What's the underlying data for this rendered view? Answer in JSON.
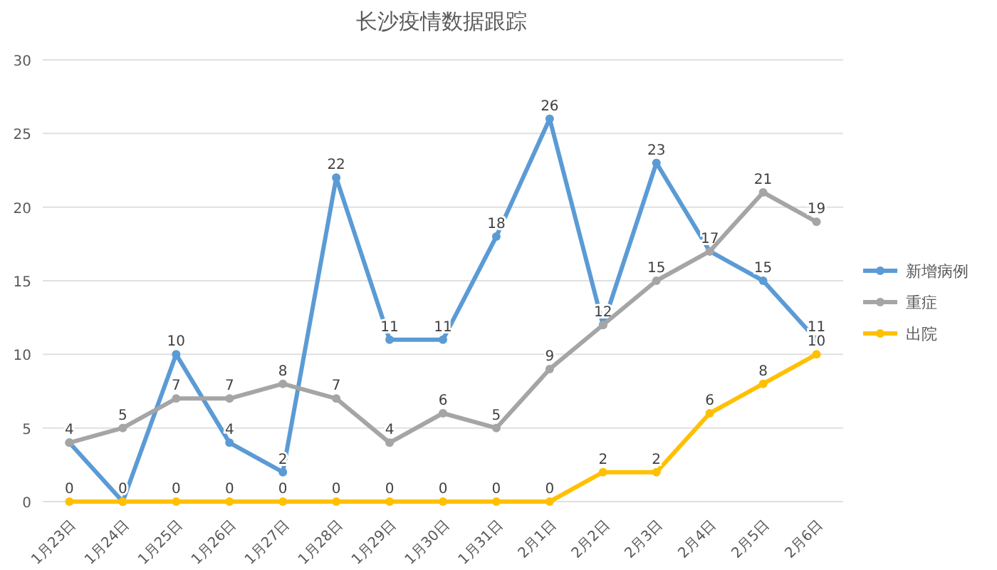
{
  "chart_data": {
    "type": "line",
    "title": "长沙疫情数据跟踪",
    "categories": [
      "1月23日",
      "1月24日",
      "1月25日",
      "1月26日",
      "1月27日",
      "1月28日",
      "1月29日",
      "1月30日",
      "1月31日",
      "2月1日",
      "2月2日",
      "2月3日",
      "2月4日",
      "2月5日",
      "2月6日"
    ],
    "series": [
      {
        "name": "新增病例",
        "color": "#5b9bd5",
        "values": [
          4,
          0,
          10,
          4,
          2,
          22,
          11,
          11,
          18,
          26,
          12,
          23,
          17,
          15,
          11
        ],
        "value_labels": [
          "4",
          "0",
          "10",
          "4",
          "2",
          "22",
          "11",
          "11",
          "18",
          "26",
          "12",
          "23",
          "17",
          "15",
          "11"
        ]
      },
      {
        "name": "重症",
        "color": "#a5a5a5",
        "values": [
          4,
          5,
          7,
          7,
          8,
          7,
          4,
          6,
          5,
          9,
          12,
          15,
          17,
          21,
          19
        ],
        "value_labels": [
          null,
          "5",
          "7",
          "7",
          "8",
          "7",
          "4",
          "6",
          "5",
          "9",
          null,
          "15",
          null,
          "21",
          "19"
        ]
      },
      {
        "name": "出院",
        "color": "#ffc000",
        "values": [
          0,
          0,
          0,
          0,
          0,
          0,
          0,
          0,
          0,
          0,
          2,
          2,
          6,
          8,
          10
        ],
        "value_labels": [
          "0",
          null,
          "0",
          "0",
          "0",
          "0",
          "0",
          "0",
          "0",
          "0",
          "2",
          "2",
          "6",
          "8",
          "10"
        ]
      }
    ],
    "ylim": [
      0,
      30
    ],
    "yticks": [
      0,
      5,
      10,
      15,
      20,
      25,
      30
    ],
    "grid": "y",
    "legend": "right",
    "marker": "circle"
  }
}
